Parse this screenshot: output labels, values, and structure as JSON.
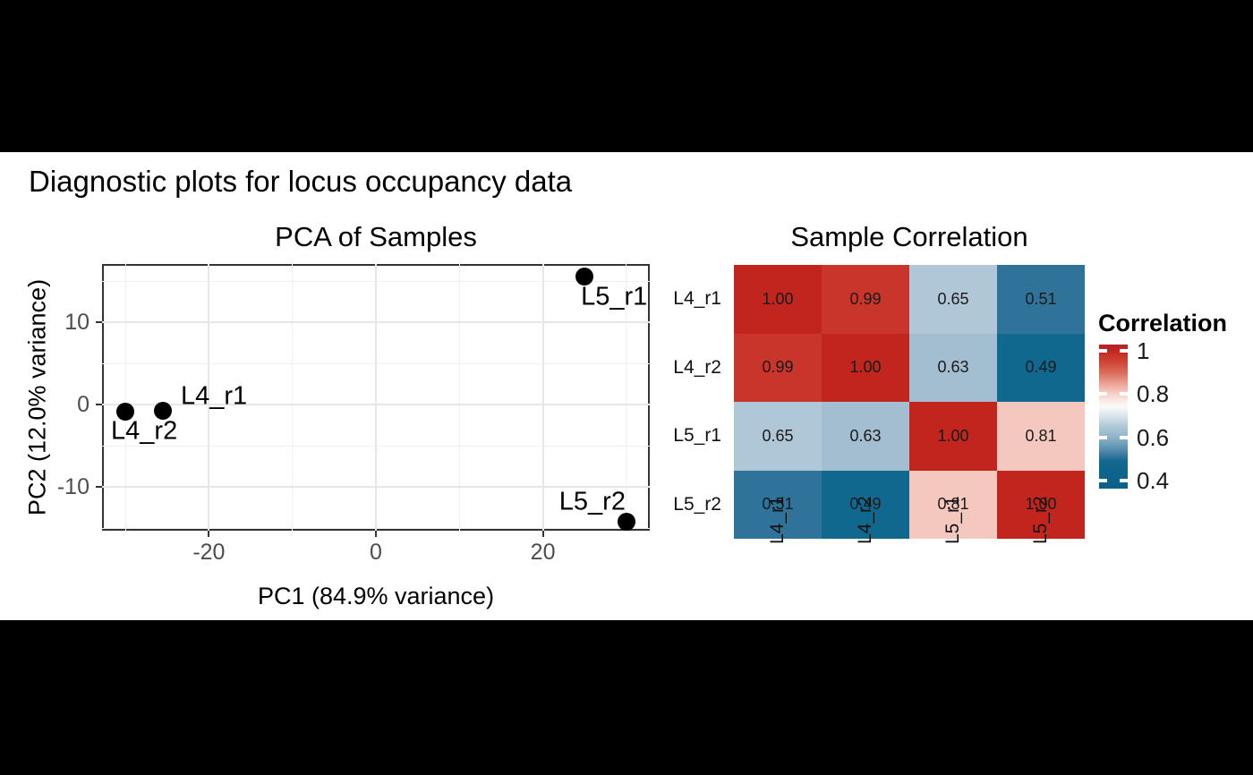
{
  "figure_title": "Diagnostic plots for locus occupancy data",
  "chart_data": [
    {
      "type": "scatter",
      "title": "PCA of Samples",
      "xlabel": "PC1 (84.9% variance)",
      "ylabel": "PC2 (12.0% variance)",
      "xlim": [
        -32.8,
        32.8
      ],
      "ylim": [
        -15.3,
        17.1
      ],
      "x_ticks": [
        -20,
        0,
        20
      ],
      "x_tick_labels": [
        "-20",
        "0",
        "20"
      ],
      "x_minor_ticks": [
        -30,
        -10,
        10,
        30
      ],
      "y_ticks": [
        10,
        0,
        -10
      ],
      "y_tick_labels": [
        "10",
        "0",
        "-10"
      ],
      "y_minor_ticks": [
        15,
        5,
        -5,
        -15
      ],
      "grid": true,
      "point_color": "#000000",
      "points": [
        {
          "label": "L5_r1",
          "x": 25.0,
          "y": 15.6,
          "label_side": "below-right"
        },
        {
          "label": "L4_r1",
          "x": -25.5,
          "y": -0.7,
          "label_side": "above-right"
        },
        {
          "label": "L4_r2",
          "x": -30.0,
          "y": -0.8,
          "label_side": "below-left"
        },
        {
          "label": "L5_r2",
          "x": 30.0,
          "y": -14.2,
          "label_side": "above-left"
        }
      ]
    },
    {
      "type": "heatmap",
      "title": "Sample Correlation",
      "rows": [
        "L4_r1",
        "L4_r2",
        "L5_r1",
        "L5_r2"
      ],
      "cols": [
        "L4_r1",
        "L4_r2",
        "L5_r1",
        "L5_r2"
      ],
      "values": [
        [
          1.0,
          0.99,
          0.65,
          0.51
        ],
        [
          0.99,
          1.0,
          0.63,
          0.49
        ],
        [
          0.65,
          0.63,
          1.0,
          0.81
        ],
        [
          0.51,
          0.49,
          0.81,
          1.0
        ]
      ],
      "cell_labels": [
        [
          "1.00",
          "0.99",
          "0.65",
          "0.51"
        ],
        [
          "0.99",
          "1.00",
          "0.63",
          "0.49"
        ],
        [
          "0.65",
          "0.63",
          "1.00",
          "0.81"
        ],
        [
          "0.51",
          "0.49",
          "0.81",
          "1.00"
        ]
      ],
      "cell_colors": [
        [
          "#C2251E",
          "#C9342B",
          "#AFC7D6",
          "#30739A"
        ],
        [
          "#C9342B",
          "#C2251E",
          "#A3BDD1",
          "#11688F"
        ],
        [
          "#AFC7D6",
          "#A3BDD1",
          "#C2251E",
          "#F5C8BF"
        ],
        [
          "#30739A",
          "#11688F",
          "#F5C8BF",
          "#C2251E"
        ]
      ],
      "legend": {
        "title": "Correlation",
        "position": "right",
        "tick_values": [
          1,
          0.8,
          0.6,
          0.4
        ],
        "tick_labels": [
          "1",
          "0.8",
          "0.6",
          "0.4"
        ],
        "bar_value_top": 1.029,
        "bar_value_bottom": 0.363,
        "gradient_stops": [
          {
            "pos": "0%",
            "color": "#B6202A"
          },
          {
            "pos": "4%",
            "color": "#C2251E"
          },
          {
            "pos": "12%",
            "color": "#CE4435"
          },
          {
            "pos": "20%",
            "color": "#DC6F5D"
          },
          {
            "pos": "27%",
            "color": "#EBA294"
          },
          {
            "pos": "33%",
            "color": "#F5C8BF"
          },
          {
            "pos": "38%",
            "color": "#FAE5E0"
          },
          {
            "pos": "43%",
            "color": "#FBFBFB"
          },
          {
            "pos": "48%",
            "color": "#E2EAEF"
          },
          {
            "pos": "57%",
            "color": "#AFC7D6"
          },
          {
            "pos": "64%",
            "color": "#8FB5CB"
          },
          {
            "pos": "72%",
            "color": "#5C92B0"
          },
          {
            "pos": "78%",
            "color": "#30739A"
          },
          {
            "pos": "81%",
            "color": "#11688F"
          },
          {
            "pos": "100%",
            "color": "#0A6088"
          }
        ]
      }
    }
  ]
}
